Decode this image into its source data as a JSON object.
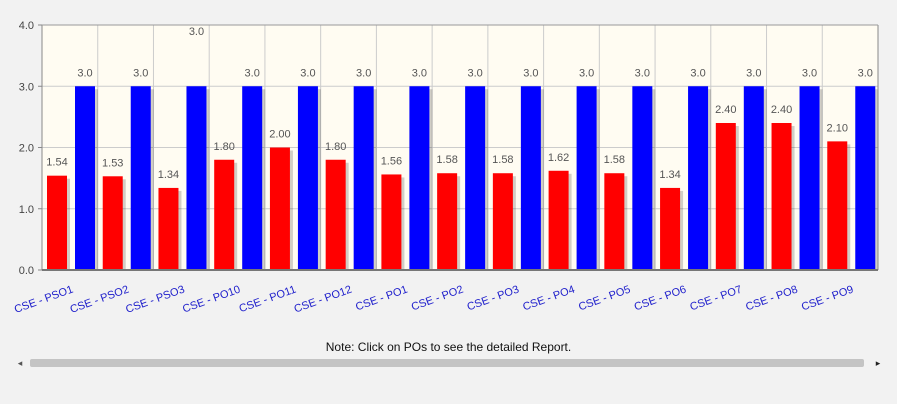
{
  "chart_data": {
    "type": "bar",
    "categories": [
      "CSE - PSO1",
      "CSE - PSO2",
      "CSE - PSO3",
      "CSE - PO10",
      "CSE - PO11",
      "CSE - PO12",
      "CSE - PO1",
      "CSE - PO2",
      "CSE - PO3",
      "CSE - PO4",
      "CSE - PO5",
      "CSE - PO6",
      "CSE - PO7",
      "CSE - PO8",
      "CSE - PO9"
    ],
    "series": [
      {
        "color": "#ff0000",
        "values": [
          1.54,
          1.53,
          1.34,
          1.8,
          2.0,
          1.8,
          1.56,
          1.58,
          1.58,
          1.62,
          1.58,
          1.34,
          2.4,
          2.4,
          2.1
        ],
        "labels": [
          "1.54",
          "1.53",
          "1.34",
          "1.80",
          "2.00",
          "1.80",
          "1.56",
          "1.58",
          "1.58",
          "1.62",
          "1.58",
          "1.34",
          "2.40",
          "2.40",
          "2.10"
        ]
      },
      {
        "color": "#0000ff",
        "values": [
          3.0,
          3.0,
          3.0,
          3.0,
          3.0,
          3.0,
          3.0,
          3.0,
          3.0,
          3.0,
          3.0,
          3.0,
          3.0,
          3.0,
          3.0
        ],
        "labels": [
          "3.0",
          "3.0",
          "3.0",
          "3.0",
          "3.0",
          "3.0",
          "3.0",
          "3.0",
          "3.0",
          "3.0",
          "3.0",
          "3.0",
          "3.0",
          "3.0",
          "3.0"
        ]
      }
    ],
    "y_ticks": [
      "0.0",
      "1.0",
      "2.0",
      "3.0",
      "4.0"
    ],
    "ylim": [
      0,
      4
    ],
    "grid": true,
    "colors": {
      "plot_background": "#fffcf2",
      "grid": "#cccccc"
    }
  },
  "note": "Note: Click on POs to see the detailed Report.",
  "scrollbar": {
    "left_icon": "triangle-left-icon",
    "right_icon": "triangle-right-icon",
    "left_glyph": "◂",
    "right_glyph": "▸"
  }
}
